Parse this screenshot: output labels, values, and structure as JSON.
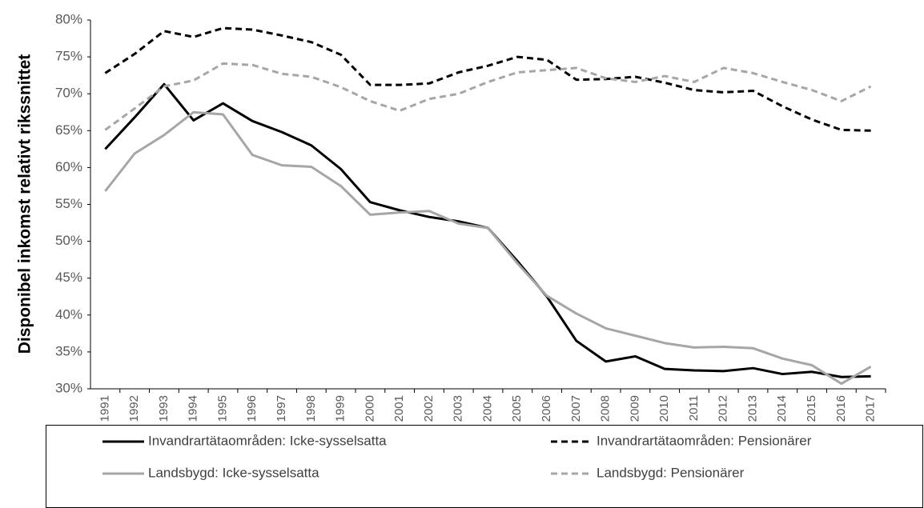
{
  "chart_data": {
    "type": "line",
    "y_label": "Disponibel inkomst relativt rikssnittet",
    "categories": [
      "1991",
      "1992",
      "1993",
      "1994",
      "1995",
      "1996",
      "1997",
      "1998",
      "1999",
      "2000",
      "2001",
      "2002",
      "2003",
      "2004",
      "2005",
      "2006",
      "2007",
      "2008",
      "2009",
      "2010",
      "2011",
      "2012",
      "2013",
      "2014",
      "2015",
      "2016",
      "2017"
    ],
    "series": [
      {
        "name": "Invandrartätaområden: Icke-sysselsatta",
        "color": "#000000",
        "style": "solid",
        "values": [
          62.5,
          66.8,
          71.3,
          66.4,
          68.7,
          66.3,
          64.8,
          63.0,
          59.8,
          55.3,
          54.2,
          53.3,
          52.7,
          51.8,
          47.3,
          42.5,
          36.5,
          33.7,
          34.4,
          32.7,
          32.5,
          32.4,
          32.8,
          32.0,
          32.3,
          31.6,
          31.7
        ]
      },
      {
        "name": "Invandrartätaområden: Pensionärer",
        "color": "#000000",
        "style": "dashed",
        "values": [
          72.8,
          75.4,
          78.5,
          77.7,
          78.9,
          78.7,
          77.9,
          77.0,
          75.3,
          71.2,
          71.2,
          71.4,
          72.9,
          73.8,
          75.0,
          74.6,
          71.9,
          72.0,
          72.3,
          71.5,
          70.5,
          70.2,
          70.4,
          68.3,
          66.5,
          65.1,
          65.0
        ]
      },
      {
        "name": "Landsbygd: Icke-sysselsatta",
        "color": "#a6a6a6",
        "style": "solid",
        "values": [
          56.8,
          61.9,
          64.4,
          67.5,
          67.2,
          61.7,
          60.3,
          60.1,
          57.5,
          53.6,
          53.9,
          54.1,
          52.4,
          51.8,
          47.0,
          42.6,
          40.2,
          38.2,
          37.2,
          36.2,
          35.6,
          35.7,
          35.5,
          34.1,
          33.2,
          30.7,
          33.0
        ]
      },
      {
        "name": "Landsbygd: Pensionärer",
        "color": "#a6a6a6",
        "style": "dashed",
        "values": [
          65.1,
          68.0,
          71.0,
          71.8,
          74.1,
          73.9,
          72.7,
          72.3,
          70.9,
          69.0,
          67.7,
          69.3,
          70.0,
          71.6,
          72.9,
          73.2,
          73.5,
          72.1,
          71.6,
          72.4,
          71.6,
          73.5,
          72.8,
          71.6,
          70.5,
          69.0,
          71.0
        ]
      }
    ],
    "ylim": [
      30,
      80
    ],
    "yticks": [
      {
        "value": 30,
        "label": "30%"
      },
      {
        "value": 35,
        "label": "35%"
      },
      {
        "value": 40,
        "label": "40%"
      },
      {
        "value": 45,
        "label": "45%"
      },
      {
        "value": 50,
        "label": "50%"
      },
      {
        "value": 55,
        "label": "55%"
      },
      {
        "value": 60,
        "label": "60%"
      },
      {
        "value": 65,
        "label": "65%"
      },
      {
        "value": 70,
        "label": "70%"
      },
      {
        "value": 75,
        "label": "75%"
      },
      {
        "value": 80,
        "label": "80%"
      }
    ],
    "grid": false,
    "legend": "bottom"
  }
}
